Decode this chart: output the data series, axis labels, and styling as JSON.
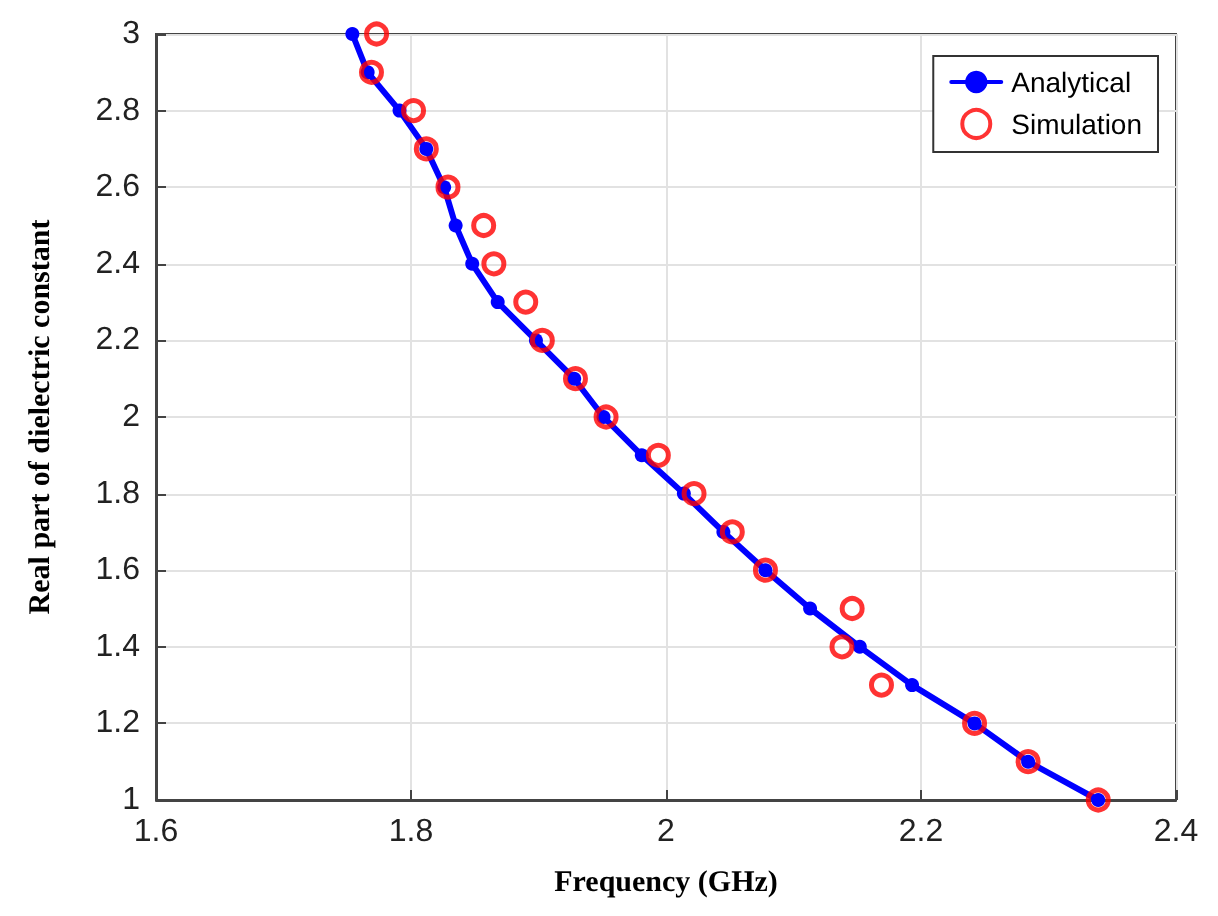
{
  "chart_data": {
    "type": "line",
    "xlabel": "Frequency (GHz)",
    "ylabel": "Real part of dielectric constant",
    "xlim": [
      1.6,
      2.4
    ],
    "xticks": [
      1.6,
      1.8,
      2,
      2.2,
      2.4
    ],
    "ylim": [
      1,
      3
    ],
    "yticks": [
      1,
      1.2,
      1.4,
      1.6,
      1.8,
      2,
      2.2,
      2.4,
      2.6,
      2.8,
      3
    ],
    "grid": true,
    "legend": "top right",
    "series": [
      {
        "name": "Analytical",
        "color": "#0000ff",
        "marker": "circle",
        "line_style": "solid",
        "x": [
          1.754,
          1.766,
          1.791,
          1.812,
          1.826,
          1.835,
          1.848,
          1.868,
          1.898,
          1.928,
          1.951,
          1.981,
          2.014,
          2.045,
          2.078,
          2.113,
          2.152,
          2.193,
          2.242,
          2.284,
          2.339
        ],
        "values": [
          3,
          2.9,
          2.8,
          2.7,
          2.6,
          2.5,
          2.4,
          2.3,
          2.2,
          2.1,
          2,
          1.9,
          1.8,
          1.7,
          1.6,
          1.5,
          1.4,
          1.3,
          1.2,
          1.1,
          1
        ]
      },
      {
        "name": "Simulation",
        "type": "scatter",
        "color": "#ff0000",
        "marker": "circle",
        "x": [
          1.773,
          1.769,
          1.802,
          1.812,
          1.829,
          1.857,
          1.865,
          1.89,
          1.903,
          1.929,
          1.953,
          1.994,
          2.022,
          2.052,
          2.078,
          2.146,
          2.138,
          2.169,
          2.242,
          2.284,
          2.339
        ],
        "values": [
          3,
          2.9,
          2.8,
          2.7,
          2.6,
          2.5,
          2.4,
          2.3,
          2.2,
          2.1,
          2,
          1.9,
          1.8,
          1.7,
          1.6,
          1.5,
          1.4,
          1.3,
          1.2,
          1.1,
          1
        ]
      }
    ]
  }
}
